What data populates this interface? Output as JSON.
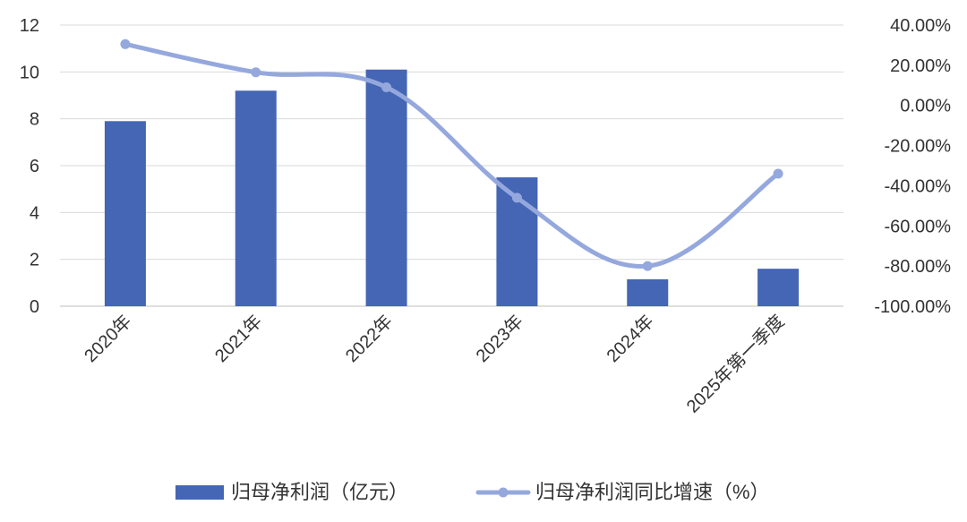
{
  "chart_data": {
    "type": "bar",
    "categories": [
      "2020年",
      "2021年",
      "2022年",
      "2023年",
      "2024年",
      "2025年第一季度"
    ],
    "series": [
      {
        "name": "归母净利润（亿元）",
        "type": "bar",
        "axis": "left",
        "color": "#4466B4",
        "values": [
          7.9,
          9.2,
          10.1,
          5.5,
          1.15,
          1.6
        ]
      },
      {
        "name": "归母净利润同比增速（%）",
        "type": "line",
        "axis": "right",
        "color": "#95A8DE",
        "values": [
          30.5,
          16.5,
          9.0,
          -46.0,
          -80.0,
          -34.0
        ]
      }
    ],
    "y_left": {
      "ylim": [
        0,
        12
      ],
      "ticks": [
        0,
        2,
        4,
        6,
        8,
        10,
        12
      ],
      "tick_labels": [
        "0",
        "2",
        "4",
        "6",
        "8",
        "10",
        "12"
      ]
    },
    "y_right": {
      "ylim": [
        -100,
        40
      ],
      "ticks": [
        40,
        20,
        0,
        -20,
        -40,
        -60,
        -80,
        -100
      ],
      "tick_labels": [
        "40.00%",
        "20.00%",
        "0.00%",
        "-20.00%",
        "-40.00%",
        "-60.00%",
        "-80.00%",
        "-100.00%"
      ]
    },
    "grid": true,
    "legend_position": "bottom",
    "title": "",
    "xlabel": "",
    "ylabel": ""
  }
}
